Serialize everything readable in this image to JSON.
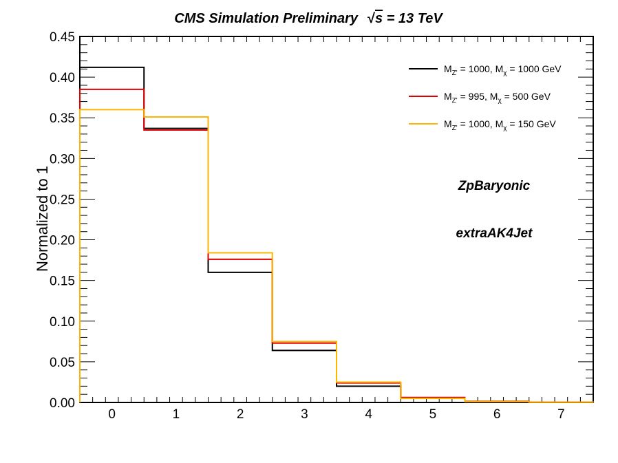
{
  "chart_data": {
    "type": "histogram-step",
    "title": "CMS Simulation Preliminary  √s = 13 TeV",
    "title_parts": {
      "main": "CMS Simulation Preliminary",
      "sqrt": "√",
      "s": "s",
      "rest": " = 13 TeV"
    },
    "ylabel": "Normalized to 1",
    "xlabel": "",
    "xlim": [
      -0.5,
      7.5
    ],
    "ylim": [
      0,
      0.45
    ],
    "bin_edges": [
      -0.5,
      0.5,
      1.5,
      2.5,
      3.5,
      4.5,
      5.5,
      6.5,
      7.5
    ],
    "x_ticks": [
      "0",
      "1",
      "2",
      "3",
      "4",
      "5",
      "6",
      "7"
    ],
    "y_ticks": [
      "0.00",
      "0.05",
      "0.10",
      "0.15",
      "0.20",
      "0.25",
      "0.30",
      "0.35",
      "0.40",
      "0.45"
    ],
    "series": [
      {
        "label_main": "M",
        "label_sub1": "Z'",
        "label_mid": " = 1000, M",
        "label_sub2": "χ",
        "label_end": " = 1000 GeV",
        "color": "#000000",
        "values": [
          0.412,
          0.337,
          0.16,
          0.064,
          0.02,
          0.006,
          0.001,
          0.0002
        ]
      },
      {
        "label_main": "M",
        "label_sub1": "Z'",
        "label_mid": " = 995, M",
        "label_sub2": "χ",
        "label_end": " = 500 GeV",
        "color": "#e00000",
        "values": [
          0.385,
          0.335,
          0.176,
          0.073,
          0.024,
          0.006,
          0.0015,
          0.0003
        ]
      },
      {
        "label_main": "M",
        "label_sub1": "Z'",
        "label_mid": " = 1000, M",
        "label_sub2": "χ",
        "label_end": " = 150 GeV",
        "color": "#ffb400",
        "values": [
          0.36,
          0.351,
          0.184,
          0.075,
          0.025,
          0.005,
          0.0012,
          0.0003
        ]
      }
    ],
    "annotations": [
      "ZpBaryonic",
      "extraAK4Jet"
    ],
    "legend_position": "top-right",
    "grid": false
  }
}
